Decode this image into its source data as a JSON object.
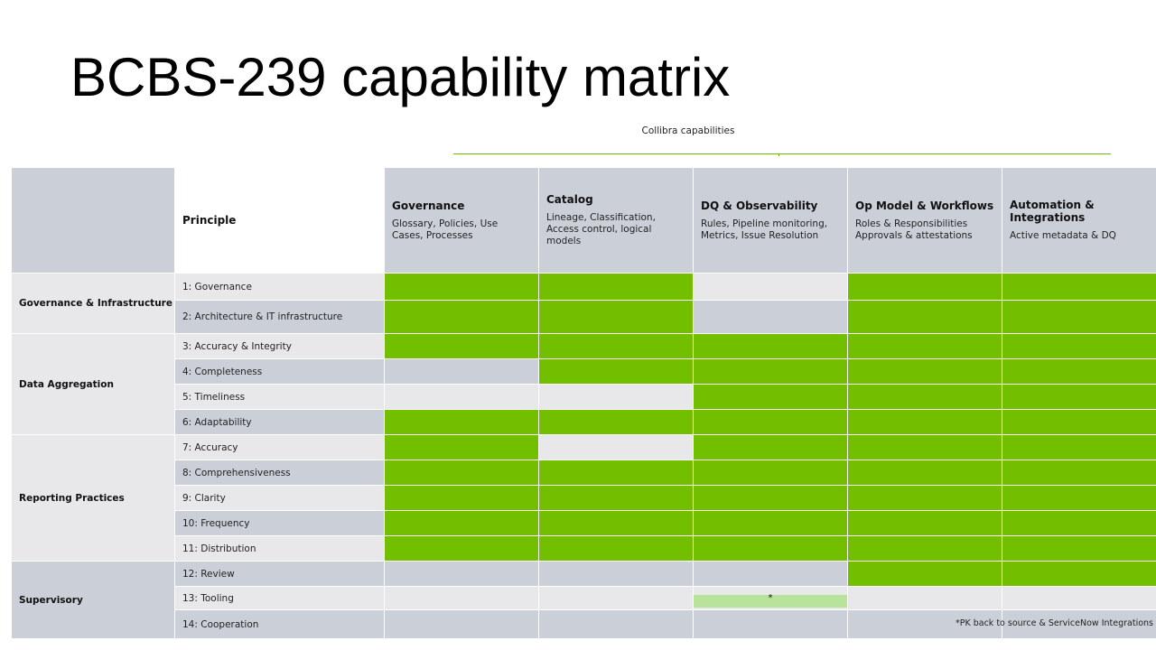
{
  "title": "BCBS-239 capability matrix",
  "capabilities_caption": "Collibra capabilities",
  "principle_header": "Principle",
  "capabilities": [
    {
      "name": "Governance",
      "desc": "Glossary, Policies, Use Cases, Processes"
    },
    {
      "name": "Catalog",
      "desc": "Lineage, Classification, Access control, logical models"
    },
    {
      "name": "DQ & Observability",
      "desc": "Rules, Pipeline monitoring, Metrics, Issue Resolution"
    },
    {
      "name": "Op Model & Workflows",
      "desc": "Roles & Responsibilities\nApprovals & attestations"
    },
    {
      "name": "Automation & Integrations",
      "desc": "Active metadata & DQ"
    }
  ],
  "groups": [
    {
      "name": "Governance & Infrastructure"
    },
    {
      "name": "Data Aggregation"
    },
    {
      "name": "Reporting Practices"
    },
    {
      "name": "Supervisory"
    }
  ],
  "principles": [
    {
      "label": "1: Governance",
      "coverage": [
        1,
        1,
        0,
        1,
        1
      ]
    },
    {
      "label": "2: Architecture & IT infrastructure",
      "coverage": [
        1,
        1,
        0,
        1,
        1
      ]
    },
    {
      "label": "3: Accuracy & Integrity",
      "coverage": [
        1,
        1,
        1,
        1,
        1
      ]
    },
    {
      "label": "4: Completeness",
      "coverage": [
        0,
        1,
        1,
        1,
        1
      ]
    },
    {
      "label": "5: Timeliness",
      "coverage": [
        0,
        0,
        1,
        1,
        1
      ]
    },
    {
      "label": "6: Adaptability",
      "coverage": [
        1,
        1,
        1,
        1,
        1
      ]
    },
    {
      "label": "7: Accuracy",
      "coverage": [
        1,
        0,
        1,
        1,
        1
      ]
    },
    {
      "label": "8: Comprehensiveness",
      "coverage": [
        1,
        1,
        1,
        1,
        1
      ]
    },
    {
      "label": "9: Clarity",
      "coverage": [
        1,
        1,
        1,
        1,
        1
      ]
    },
    {
      "label": "10: Frequency",
      "coverage": [
        1,
        1,
        1,
        1,
        1
      ]
    },
    {
      "label": "11: Distribution",
      "coverage": [
        1,
        1,
        1,
        1,
        1
      ]
    },
    {
      "label": "12: Review",
      "coverage": [
        0,
        0,
        0,
        1,
        1
      ]
    },
    {
      "label": "13: Tooling",
      "coverage": [
        0,
        0,
        0.5,
        0,
        0
      ],
      "partial_marker": "*"
    },
    {
      "label": "14: Cooperation",
      "coverage": [
        0,
        0,
        0,
        0,
        0
      ]
    }
  ],
  "footnote": "*PK back to source & ServiceNow Integrations",
  "colors": {
    "covered": "#72bf00",
    "partial": "#b8e39a",
    "header": "#cbd0d8",
    "light": "#e8e8ea"
  }
}
